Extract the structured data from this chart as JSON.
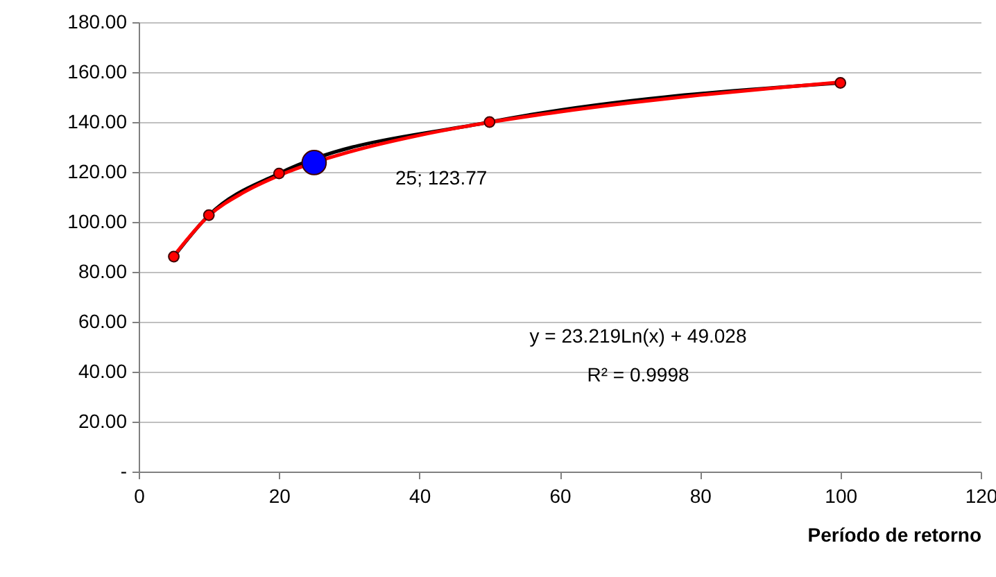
{
  "chart_data": {
    "type": "line",
    "xlabel": "Período de retorno",
    "xlim": [
      0,
      120
    ],
    "xticks": [
      0,
      20,
      40,
      60,
      80,
      100,
      120
    ],
    "ylim": [
      0,
      180
    ],
    "yticks": [
      {
        "value": 0,
        "label": "-"
      },
      {
        "value": 20,
        "label": "20.00"
      },
      {
        "value": 40,
        "label": "40.00"
      },
      {
        "value": 60,
        "label": "60.00"
      },
      {
        "value": 80,
        "label": "80.00"
      },
      {
        "value": 100,
        "label": "100.00"
      },
      {
        "value": 120,
        "label": "120.00"
      },
      {
        "value": 140,
        "label": "140.00"
      },
      {
        "value": 160,
        "label": "160.00"
      },
      {
        "value": 180,
        "label": "180.00"
      }
    ],
    "grid": "y",
    "legend": false,
    "series": [
      {
        "color": "#000000",
        "x": [
          5,
          10,
          20,
          50,
          100
        ],
        "values": [
          86.1,
          102.7,
          119.4,
          140.0,
          155.7
        ]
      },
      {
        "color": "#ff0000",
        "x": [
          5,
          10,
          15,
          20,
          30,
          40,
          50,
          60,
          70,
          80,
          90,
          100
        ],
        "values": [
          86.4,
          102.5,
          111.9,
          118.6,
          128.0,
          134.7,
          139.9,
          144.1,
          147.7,
          150.8,
          153.5,
          156.0
        ]
      },
      {
        "type": "scatter",
        "color": "#ff0000",
        "marker": "circle",
        "x": [
          5,
          10,
          20,
          50,
          100
        ],
        "values": [
          86.1,
          102.7,
          119.4,
          140.0,
          155.7
        ]
      },
      {
        "type": "scatter",
        "color": "#0000ff",
        "marker": "circle",
        "x": [
          25
        ],
        "values": [
          123.77
        ]
      }
    ],
    "annotations": [
      "25;  123.77",
      "y = 23.219Ln(x) + 49.028",
      "R² = 0.9998"
    ]
  }
}
